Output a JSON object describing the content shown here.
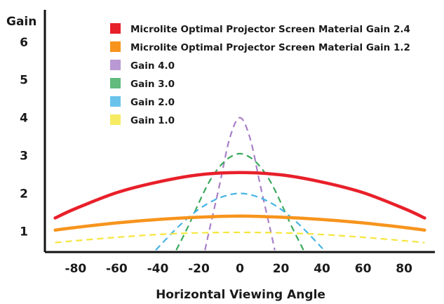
{
  "chart_data": {
    "type": "line",
    "title": "",
    "xlabel": "Horizontal Viewing Angle",
    "ylabel": "Gain",
    "xlim": [
      -95,
      95
    ],
    "ylim": [
      0.45,
      6.85
    ],
    "x_ticks": [
      -80,
      -60,
      -40,
      -20,
      0,
      20,
      40,
      60,
      80
    ],
    "y_ticks": [
      1,
      2,
      3,
      4,
      5,
      6
    ],
    "grid": false,
    "legend_position": "top-left",
    "series": [
      {
        "name": "Microlite Optimal Projector Screen Material Gain 2.4",
        "color": "#e8202a",
        "style": "solid",
        "x": [
          -90,
          -80,
          -60,
          -40,
          -20,
          0,
          20,
          40,
          60,
          80,
          90
        ],
        "y": [
          1.35,
          1.6,
          2.02,
          2.3,
          2.49,
          2.55,
          2.49,
          2.3,
          2.02,
          1.6,
          1.35
        ]
      },
      {
        "name": "Microlite Optimal Projector Screen Material Gain 1.2",
        "color": "#f7941d",
        "style": "solid",
        "x": [
          -90,
          -80,
          -60,
          -40,
          -20,
          0,
          20,
          40,
          60,
          80,
          90
        ],
        "y": [
          1.03,
          1.1,
          1.22,
          1.31,
          1.37,
          1.4,
          1.37,
          1.31,
          1.22,
          1.1,
          1.03
        ]
      },
      {
        "name": "Gain 4.0",
        "color": "#a87fc8",
        "style": "dashed",
        "x": [
          -17,
          -15,
          -10,
          -5,
          0,
          5,
          10,
          15,
          17
        ],
        "y": [
          0.5,
          1.0,
          2.2,
          3.45,
          4.0,
          3.45,
          2.2,
          1.0,
          0.5
        ]
      },
      {
        "name": "Gain 3.0",
        "color": "#3aaa5c",
        "style": "dashed",
        "x": [
          -31,
          -25,
          -20,
          -15,
          -10,
          -5,
          0,
          5,
          10,
          15,
          20,
          25,
          31
        ],
        "y": [
          0.5,
          1.15,
          1.75,
          2.3,
          2.7,
          2.95,
          3.05,
          2.95,
          2.7,
          2.3,
          1.75,
          1.15,
          0.5
        ]
      },
      {
        "name": "Gain 2.0",
        "color": "#45b4e6",
        "style": "dashed",
        "x": [
          -41,
          -30,
          -20,
          -10,
          0,
          10,
          20,
          30,
          41
        ],
        "y": [
          0.5,
          1.12,
          1.58,
          1.88,
          2.0,
          1.88,
          1.58,
          1.12,
          0.5
        ]
      },
      {
        "name": "Gain 1.0",
        "color": "#f5e63c",
        "style": "dashed",
        "x": [
          -90,
          -60,
          -30,
          0,
          30,
          60,
          90
        ],
        "y": [
          0.7,
          0.84,
          0.94,
          0.97,
          0.94,
          0.84,
          0.7
        ]
      }
    ]
  }
}
